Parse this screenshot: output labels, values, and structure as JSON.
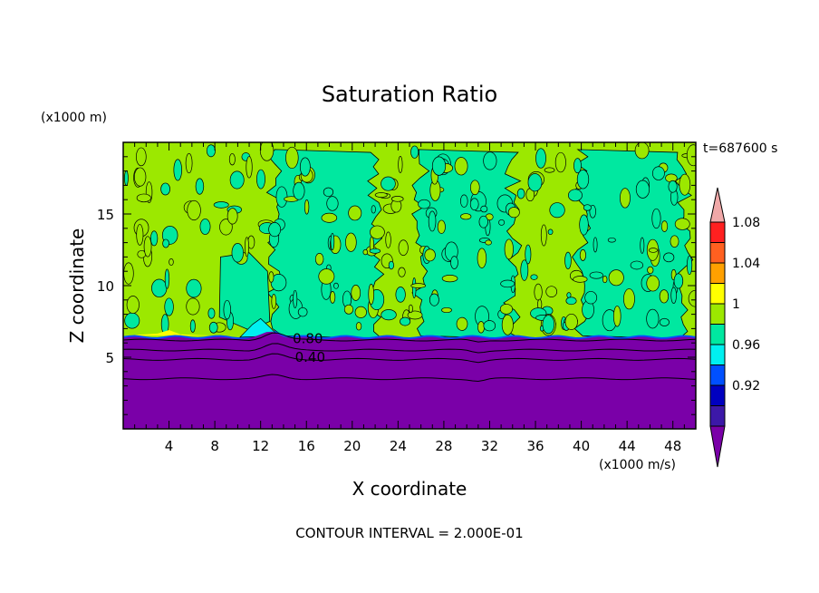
{
  "chart_data": {
    "type": "heatmap",
    "title": "Saturation Ratio",
    "xlabel": "X coordinate",
    "ylabel": "Z coordinate",
    "x_unit": "(x1000 m/s)",
    "y_unit": "(x1000 m)",
    "time_label": "t=687600 s",
    "footer": "CONTOUR INTERVAL = 2.000E-01",
    "xlim": [
      0,
      50
    ],
    "ylim": [
      0,
      20
    ],
    "x_ticks": [
      4,
      8,
      12,
      16,
      20,
      24,
      28,
      32,
      36,
      40,
      44,
      48
    ],
    "y_ticks": [
      5,
      10,
      15
    ],
    "contour_labels": [
      {
        "text": "0.80",
        "x": 14.8,
        "z": 6.3
      },
      {
        "text": "0.40",
        "x": 15.0,
        "z": 5.0
      }
    ],
    "colorbar": {
      "levels": [
        {
          "color": "#7a00a8"
        },
        {
          "color": "#3c18a8"
        },
        {
          "color": "#0000c0"
        },
        {
          "color": "#0050ff"
        },
        {
          "color": "#00f0f0"
        },
        {
          "color": "#00e8a0"
        },
        {
          "color": "#9ce800"
        },
        {
          "color": "#ffff00"
        },
        {
          "color": "#ffa000"
        },
        {
          "color": "#ff6020"
        },
        {
          "color": "#ff2020"
        },
        {
          "color": "#f0a8a8"
        }
      ],
      "tick_labels": [
        "0.92",
        "0.96",
        "1",
        "1.04",
        "1.08"
      ]
    }
  }
}
